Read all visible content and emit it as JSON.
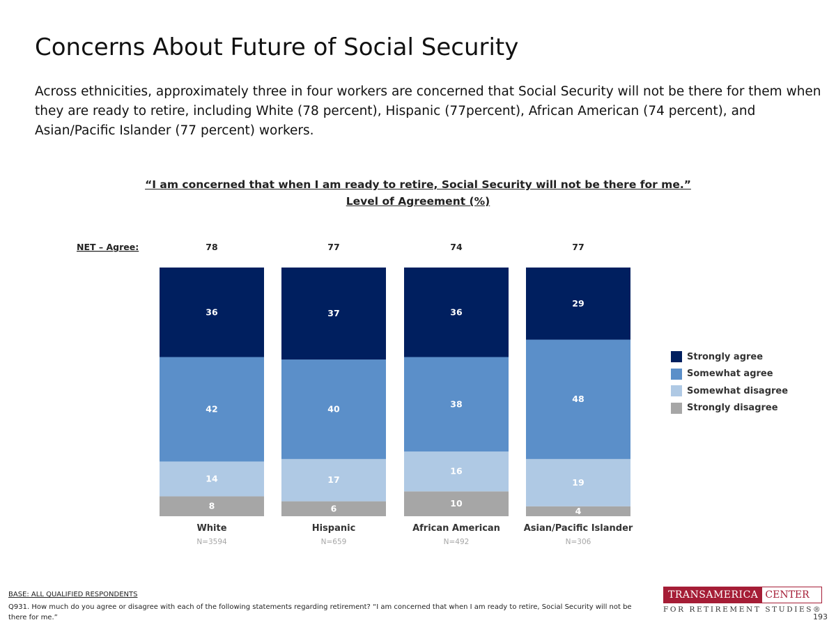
{
  "title": "Concerns About Future of Social Security",
  "subtitle": "Across ethnicities, approximately three in four workers are concerned that Social Security will not be there for them when they are ready to retire, including White (78 percent), Hispanic (77percent), African American (74 percent), and Asian/Pacific Islander (77 percent) workers.",
  "chart_data": {
    "type": "bar",
    "stacked": true,
    "title": "“I am concerned that when I am ready to retire, Social Security will not be there for me.”",
    "subtitle": "Level of Agreement (%)",
    "net_label": "NET – Agree:",
    "net_values": [
      78,
      77,
      74,
      77
    ],
    "categories": [
      "White",
      "Hispanic",
      "African American",
      "Asian/Pacific Islander"
    ],
    "sample_sizes": [
      "N=3594",
      "N=659",
      "N=492",
      "N=306"
    ],
    "series": [
      {
        "name": "Strongly agree",
        "color": "#001f5f",
        "values": [
          36,
          37,
          36,
          29
        ]
      },
      {
        "name": "Somewhat agree",
        "color": "#5b8fc9",
        "values": [
          42,
          40,
          38,
          48
        ]
      },
      {
        "name": "Somewhat disagree",
        "color": "#afc9e4",
        "values": [
          14,
          17,
          16,
          19
        ]
      },
      {
        "name": "Strongly disagree",
        "color": "#a6a6a6",
        "values": [
          8,
          6,
          10,
          4
        ]
      }
    ],
    "legend": "right",
    "grid": false
  },
  "footer": {
    "base_label": "BASE: ALL QUALIFIED RESPONDENTS",
    "footnote": "Q931. How much do you agree or disagree with each of the following statements regarding retirement? “I am concerned that when I am ready to retire, Social Security will not be there for me.”"
  },
  "logo": {
    "brand": "TRANSAMERICA",
    "center": "CENTER",
    "tagline": "FOR RETIREMENT STUDIES®"
  },
  "page_number": "193"
}
